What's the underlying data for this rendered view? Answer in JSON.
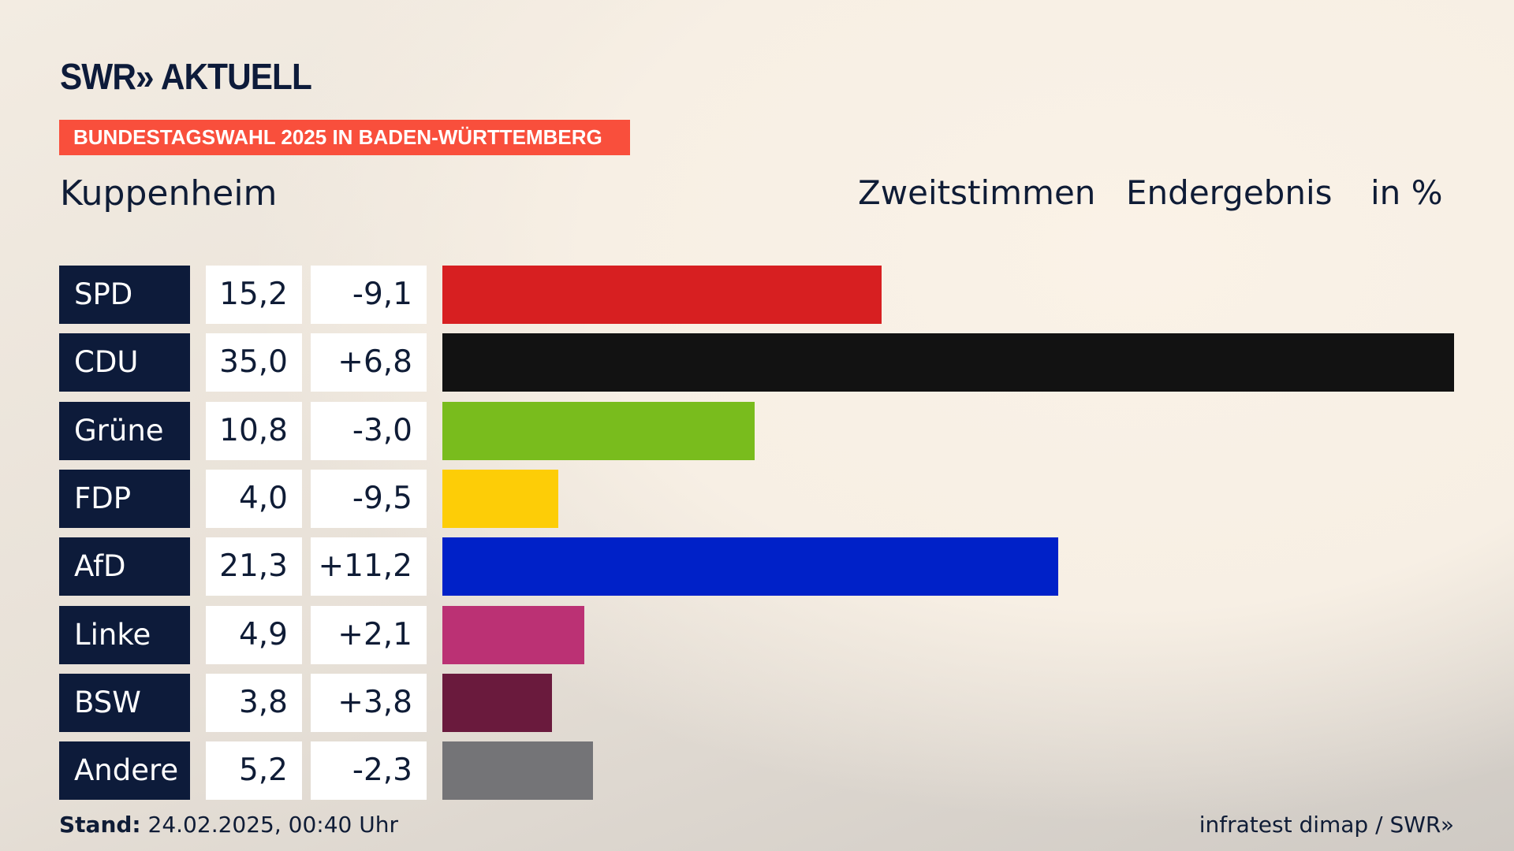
{
  "header": {
    "logo": "SWR» AKTUELL",
    "banner": "BUNDESTAGSWAHL 2025 IN BADEN-WÜRTTEMBERG",
    "place": "Kuppenheim",
    "col1": "Zweitstimmen",
    "col2": "Endergebnis",
    "col3": "in %"
  },
  "chart_data": {
    "type": "bar",
    "orientation": "horizontal",
    "title": "Kuppenheim – Zweitstimmen Endergebnis in %",
    "categories": [
      "SPD",
      "CDU",
      "Grüne",
      "FDP",
      "AfD",
      "Linke",
      "BSW",
      "Andere"
    ],
    "values": [
      15.2,
      35.0,
      10.8,
      4.0,
      21.3,
      4.9,
      3.8,
      5.2
    ],
    "value_labels": [
      "15,2",
      "35,0",
      "10,8",
      "4,0",
      "21,3",
      "4,9",
      "3,8",
      "5,2"
    ],
    "diff_labels": [
      "-9,1",
      "+6,8",
      "-3,0",
      "-9,5",
      "+11,2",
      "+2,1",
      "+3,8",
      "-2,3"
    ],
    "colors": [
      "#d71f21",
      "#121212",
      "#79bc1d",
      "#fdcd07",
      "#0021c8",
      "#bb3174",
      "#6a1a3d",
      "#747477"
    ],
    "xlim": [
      0,
      35
    ]
  },
  "footer": {
    "stand_label": "Stand:",
    "stand_value": "24.02.2025, 00:40 Uhr",
    "source": "infratest dimap / SWR»"
  }
}
